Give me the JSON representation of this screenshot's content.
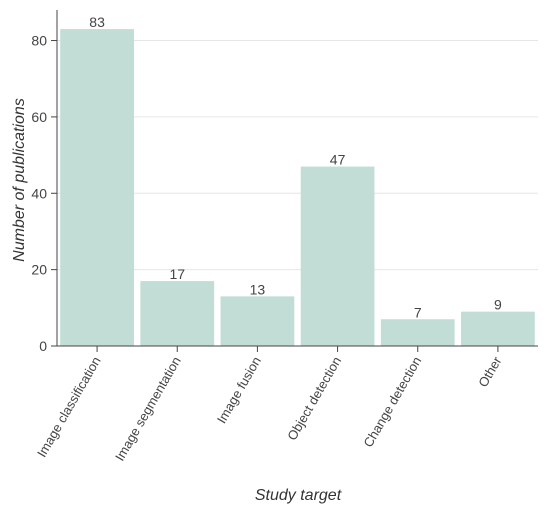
{
  "chart_data": {
    "type": "bar",
    "categories": [
      "Image classification",
      "Image segmentation",
      "Image fusion",
      "Object detection",
      "Change detection",
      "Other"
    ],
    "values": [
      83,
      17,
      13,
      47,
      7,
      9
    ],
    "title": "",
    "xlabel": "Study target",
    "ylabel": "Number of publications",
    "ylim": [
      0,
      88
    ],
    "yticks": [
      0,
      20,
      40,
      60,
      80
    ],
    "grid": "horizontal",
    "show_value_labels": true,
    "bar_color": "#c2ddd5",
    "grid_color": "#e6e6e6",
    "axis_color": "#444444"
  }
}
